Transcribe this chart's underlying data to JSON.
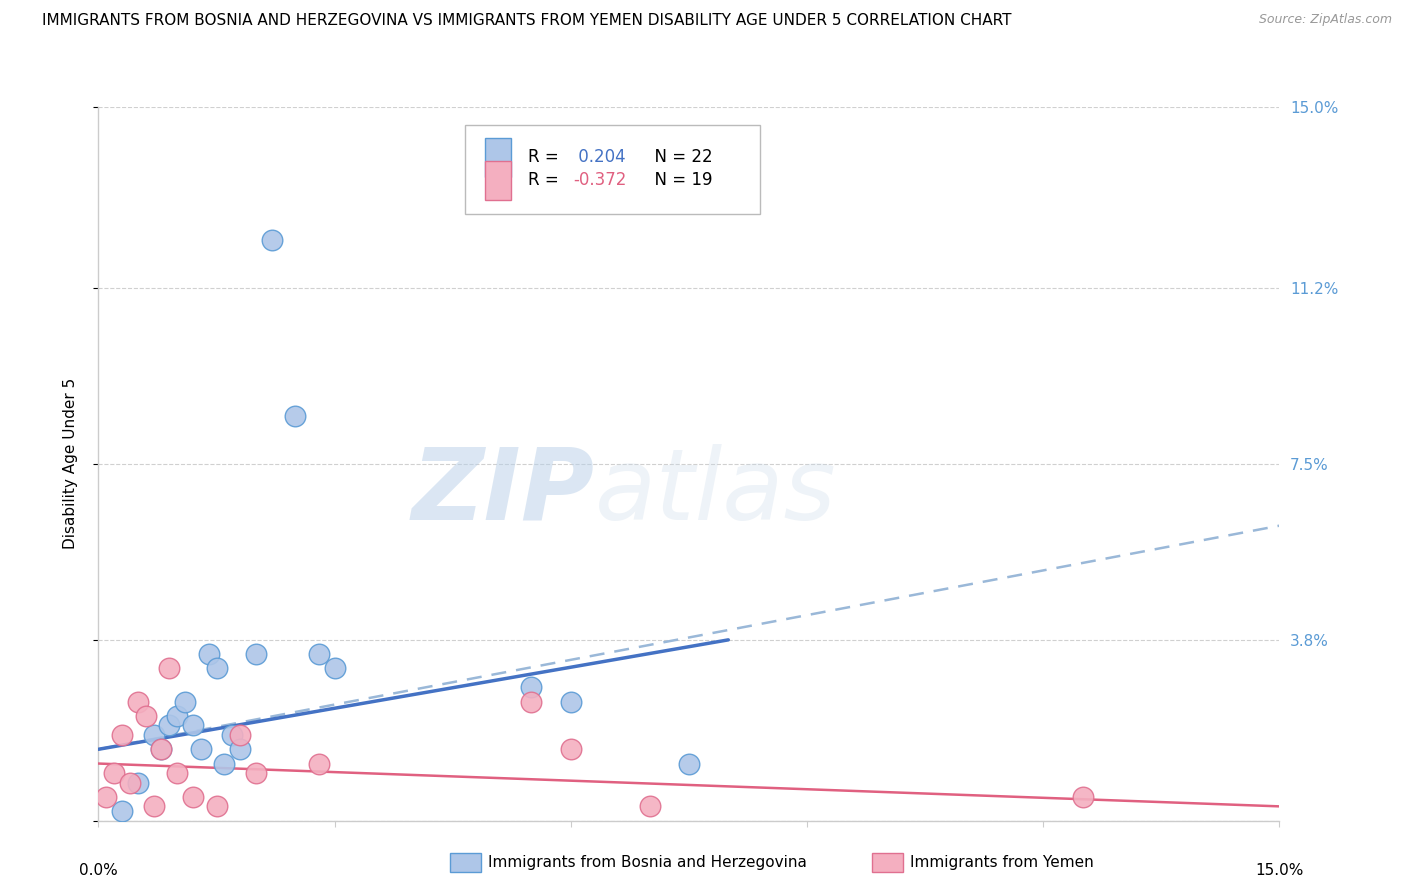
{
  "title": "IMMIGRANTS FROM BOSNIA AND HERZEGOVINA VS IMMIGRANTS FROM YEMEN DISABILITY AGE UNDER 5 CORRELATION CHART",
  "source": "Source: ZipAtlas.com",
  "ylabel": "Disability Age Under 5",
  "xlim": [
    0.0,
    15.0
  ],
  "ylim": [
    0.0,
    15.0
  ],
  "bosnia_R": 0.204,
  "bosnia_N": 22,
  "yemen_R": -0.372,
  "yemen_N": 19,
  "bosnia_color": "#aec6e8",
  "bosnia_edge_color": "#5b9bd5",
  "yemen_color": "#f4afc0",
  "yemen_edge_color": "#e07090",
  "bosnia_line_color": "#4472c4",
  "yemen_line_color": "#e06080",
  "dashed_line_color": "#9ab8d8",
  "grid_color": "#d0d0d0",
  "background_color": "#ffffff",
  "right_label_color": "#5b9bd5",
  "bosnia_scatter_x": [
    0.3,
    0.5,
    0.7,
    0.8,
    0.9,
    1.0,
    1.1,
    1.2,
    1.3,
    1.4,
    1.5,
    1.6,
    1.7,
    1.8,
    2.0,
    2.2,
    2.5,
    2.8,
    3.0,
    5.5,
    6.0,
    7.5
  ],
  "bosnia_scatter_y": [
    0.2,
    0.8,
    1.8,
    1.5,
    2.0,
    2.2,
    2.5,
    2.0,
    1.5,
    3.5,
    3.2,
    1.2,
    1.8,
    1.5,
    3.5,
    12.2,
    8.5,
    3.5,
    3.2,
    2.8,
    2.5,
    1.2
  ],
  "yemen_scatter_x": [
    0.1,
    0.2,
    0.3,
    0.4,
    0.5,
    0.6,
    0.7,
    0.8,
    0.9,
    1.0,
    1.2,
    1.5,
    1.8,
    2.0,
    5.5,
    6.0,
    7.0,
    12.5,
    2.8
  ],
  "yemen_scatter_y": [
    0.5,
    1.0,
    1.8,
    0.8,
    2.5,
    2.2,
    0.3,
    1.5,
    3.2,
    1.0,
    0.5,
    0.3,
    1.8,
    1.0,
    2.5,
    1.5,
    0.3,
    0.5,
    1.2
  ],
  "bosnia_line_x0": 0.0,
  "bosnia_line_y0": 1.5,
  "bosnia_line_x1": 8.0,
  "bosnia_line_y1": 3.8,
  "dashed_line_x0": 0.0,
  "dashed_line_y0": 1.5,
  "dashed_line_x1": 15.0,
  "dashed_line_y1": 6.2,
  "yemen_line_x0": 0.0,
  "yemen_line_y0": 1.2,
  "yemen_line_x1": 15.0,
  "yemen_line_y1": 0.3,
  "title_fontsize": 11,
  "source_fontsize": 9,
  "axis_label_fontsize": 11,
  "tick_label_fontsize": 11,
  "legend_fontsize": 12,
  "watermark_fontsize": 72
}
